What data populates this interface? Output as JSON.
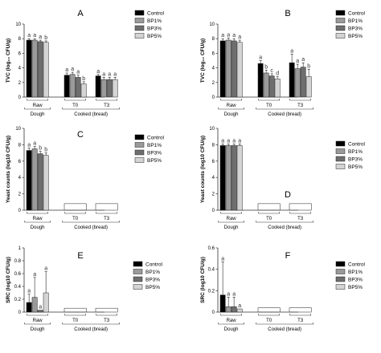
{
  "colors": {
    "Control": "#000000",
    "BP1%": "#9a9a9a",
    "BP3%": "#6e6e6e",
    "BP5%": "#d4d4d4"
  },
  "chart_data": [
    {
      "type": "bar",
      "title": "A",
      "ylabel": "TVC (log₁₀ CFU/g)",
      "ylim": [
        0,
        10
      ],
      "yticks": [
        0,
        2,
        4,
        6,
        8,
        10
      ],
      "legend_position": "top-right",
      "groups": [
        "Raw",
        "T0",
        "T3"
      ],
      "group_brackets": [
        [
          "Dough",
          [
            0
          ]
        ],
        [
          "Cooked (bread)",
          [
            1,
            2
          ]
        ]
      ],
      "series": [
        {
          "name": "Control",
          "values": [
            7.8,
            3.0,
            2.9
          ],
          "errors": [
            0.2,
            0.3,
            0.2
          ],
          "letters": [
            "a",
            "a",
            "a"
          ]
        },
        {
          "name": "BP1%",
          "values": [
            7.8,
            3.1,
            2.4
          ],
          "errors": [
            0.2,
            0.3,
            0.3
          ],
          "letters": [
            "a",
            "a",
            "a"
          ]
        },
        {
          "name": "BP3%",
          "values": [
            7.6,
            2.7,
            2.4
          ],
          "errors": [
            0.2,
            0.3,
            0.3
          ],
          "letters": [
            "a",
            "a",
            "a"
          ]
        },
        {
          "name": "BP5%",
          "values": [
            7.5,
            1.8,
            2.4
          ],
          "errors": [
            0.2,
            0.3,
            0.3
          ],
          "letters": [
            "b",
            "b",
            "a"
          ]
        }
      ]
    },
    {
      "type": "bar",
      "title": "B",
      "ylabel": "TVC (log₁₀ CFU/g)",
      "ylim": [
        0,
        10
      ],
      "yticks": [
        0,
        2,
        4,
        6,
        8,
        10
      ],
      "legend_position": "top-right",
      "groups": [
        "Raw",
        "T0",
        "T3"
      ],
      "group_brackets": [
        [
          "Dough",
          [
            0
          ]
        ],
        [
          "Cooked (bread)",
          [
            1,
            2
          ]
        ]
      ],
      "series": [
        {
          "name": "Control",
          "values": [
            7.7,
            4.6,
            4.7
          ],
          "errors": [
            0.3,
            0.4,
            1.2
          ],
          "letters": [
            "a",
            "a",
            "a"
          ]
        },
        {
          "name": "BP1%",
          "values": [
            7.8,
            3.3,
            3.9
          ],
          "errors": [
            0.3,
            0.4,
            0.6
          ],
          "letters": [
            "a",
            "b",
            "a"
          ]
        },
        {
          "name": "BP3%",
          "values": [
            7.7,
            2.9,
            4.1
          ],
          "errors": [
            0.3,
            0.3,
            0.6
          ],
          "letters": [
            "a",
            "c",
            "a"
          ]
        },
        {
          "name": "BP5%",
          "values": [
            7.5,
            2.5,
            2.8
          ],
          "errors": [
            0.3,
            0.3,
            1.0
          ],
          "letters": [
            "a",
            "d",
            "b"
          ]
        }
      ]
    },
    {
      "type": "bar",
      "title": "C",
      "ylabel": "Yeast counts (log10 CFU/g)",
      "ylim": [
        0,
        10
      ],
      "yticks": [
        0,
        2,
        4,
        6,
        8,
        10
      ],
      "legend_position": "top-right",
      "groups": [
        "Raw",
        "T0",
        "T3"
      ],
      "group_brackets": [
        [
          "Dough",
          [
            0
          ]
        ],
        [
          "Cooked (bread)",
          [
            1,
            2
          ]
        ]
      ],
      "series": [
        {
          "name": "Control",
          "values": [
            7.3,
            0.8,
            0.8
          ],
          "errors": [
            0.3,
            0,
            0
          ],
          "letters": [
            "a",
            "",
            ""
          ]
        },
        {
          "name": "BP1%",
          "values": [
            7.5,
            0.8,
            0.8
          ],
          "errors": [
            0.3,
            0,
            0
          ],
          "letters": [
            "a",
            "",
            ""
          ]
        },
        {
          "name": "BP3%",
          "values": [
            6.9,
            0.8,
            0.8
          ],
          "errors": [
            0.3,
            0,
            0
          ],
          "letters": [
            "b",
            "",
            ""
          ]
        },
        {
          "name": "BP5%",
          "values": [
            6.7,
            0.8,
            0.8
          ],
          "errors": [
            0.3,
            0,
            0
          ],
          "letters": [
            "b",
            "",
            ""
          ]
        }
      ]
    },
    {
      "type": "bar",
      "title": "D",
      "ylabel": "Yeast counts (log10 CFU/g)",
      "ylim": [
        0,
        10
      ],
      "yticks": [
        0,
        2,
        4,
        6,
        8,
        10
      ],
      "legend_position": "right",
      "groups": [
        "Raw",
        "T0",
        "T3"
      ],
      "group_brackets": [
        [
          "Dough",
          [
            0
          ]
        ],
        [
          "Cooked (bread)",
          [
            1,
            2
          ]
        ]
      ],
      "series": [
        {
          "name": "Control",
          "values": [
            7.9,
            0.8,
            0.8
          ],
          "errors": [
            0.2,
            0,
            0
          ],
          "letters": [
            "a",
            "",
            ""
          ]
        },
        {
          "name": "BP1%",
          "values": [
            7.9,
            0.8,
            0.8
          ],
          "errors": [
            0.2,
            0,
            0
          ],
          "letters": [
            "a",
            "",
            ""
          ]
        },
        {
          "name": "BP3%",
          "values": [
            7.9,
            0.8,
            0.8
          ],
          "errors": [
            0.2,
            0,
            0
          ],
          "letters": [
            "a",
            "",
            ""
          ]
        },
        {
          "name": "BP5%",
          "values": [
            7.9,
            0.8,
            0.8
          ],
          "errors": [
            0.2,
            0,
            0
          ],
          "letters": [
            "a",
            "",
            ""
          ]
        }
      ]
    },
    {
      "type": "bar",
      "title": "E",
      "ylabel": "SRC (log10 CFU/g)",
      "ylim": [
        0,
        1.0
      ],
      "yticks": [
        0,
        0.2,
        0.4,
        0.6,
        0.8,
        1.0
      ],
      "legend_position": "top-right",
      "groups": [
        "Raw",
        "T0",
        "T3"
      ],
      "group_brackets": [
        [
          "Dough",
          [
            0
          ]
        ],
        [
          "Cooked (bread)",
          [
            1,
            2
          ]
        ]
      ],
      "series": [
        {
          "name": "Control",
          "values": [
            0.15,
            0.06,
            0.06
          ],
          "errors": [
            0.13,
            0,
            0
          ],
          "letters": [
            "a",
            "",
            ""
          ]
        },
        {
          "name": "BP1%",
          "values": [
            0.23,
            0.06,
            0.06
          ],
          "errors": [
            0.31,
            0,
            0
          ],
          "letters": [
            "a",
            "",
            ""
          ]
        },
        {
          "name": "BP3%",
          "values": [
            0.03,
            0.06,
            0.06
          ],
          "errors": [
            0.0,
            0,
            0
          ],
          "letters": [
            "a",
            "",
            ""
          ]
        },
        {
          "name": "BP5%",
          "values": [
            0.3,
            0.06,
            0.06
          ],
          "errors": [
            0.33,
            0,
            0
          ],
          "letters": [
            "a",
            "",
            ""
          ]
        }
      ]
    },
    {
      "type": "bar",
      "title": "F",
      "ylabel": "SRC (log10 CFU/g)",
      "ylim": [
        0,
        0.6
      ],
      "yticks": [
        0,
        0.2,
        0.4,
        0.6
      ],
      "legend_position": "right",
      "groups": [
        "Raw",
        "T0",
        "T3"
      ],
      "group_brackets": [
        [
          "Dough",
          [
            0
          ]
        ],
        [
          "Cooked (bread)",
          [
            1,
            2
          ]
        ]
      ],
      "series": [
        {
          "name": "Control",
          "values": [
            0.16,
            0.04,
            0.04
          ],
          "errors": [
            0.31,
            0,
            0
          ],
          "letters": [
            "a",
            "",
            ""
          ]
        },
        {
          "name": "BP1%",
          "values": [
            0.05,
            0.04,
            0.04
          ],
          "errors": [
            0.09,
            0,
            0
          ],
          "letters": [
            "a",
            "",
            ""
          ]
        },
        {
          "name": "BP3%",
          "values": [
            0.05,
            0.04,
            0.04
          ],
          "errors": [
            0.09,
            0,
            0
          ],
          "letters": [
            "a",
            "",
            ""
          ]
        },
        {
          "name": "BP5%",
          "values": [
            0.03,
            0.04,
            0.04
          ],
          "errors": [
            0.0,
            0,
            0
          ],
          "letters": [
            "a",
            "",
            ""
          ]
        }
      ]
    }
  ]
}
